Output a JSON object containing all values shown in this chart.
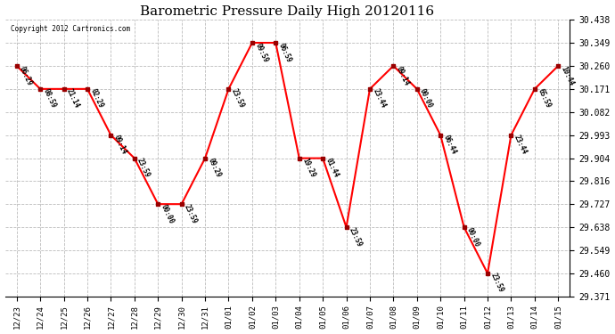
{
  "title": "Barometric Pressure Daily High 20120116",
  "copyright": "Copyright 2012 Cartronics.com",
  "x_labels": [
    "12/23",
    "12/24",
    "12/25",
    "12/26",
    "12/27",
    "12/28",
    "12/29",
    "12/30",
    "12/31",
    "01/01",
    "01/02",
    "01/03",
    "01/04",
    "01/05",
    "01/06",
    "01/07",
    "01/08",
    "01/09",
    "01/10",
    "01/11",
    "01/12",
    "01/13",
    "01/14",
    "01/15"
  ],
  "y_values": [
    30.26,
    30.171,
    30.171,
    30.171,
    29.993,
    29.904,
    29.727,
    29.727,
    29.904,
    30.171,
    30.349,
    30.349,
    29.904,
    29.904,
    29.638,
    30.171,
    30.26,
    30.171,
    29.993,
    29.638,
    29.46,
    29.993,
    30.171,
    30.26
  ],
  "point_labels": [
    "06:29",
    "08:59",
    "21:14",
    "02:29",
    "09:14",
    "23:59",
    "00:00",
    "23:59",
    "09:29",
    "23:59",
    "09:59",
    "06:59",
    "19:29",
    "01:44",
    "23:59",
    "23:44",
    "09:14",
    "00:00",
    "06:44",
    "00:00",
    "23:59",
    "23:44",
    "65:59",
    "10:44"
  ],
  "line_color": "#ff0000",
  "marker_color": "#990000",
  "background_color": "#ffffff",
  "grid_color": "#bbbbbb",
  "title_fontsize": 11,
  "ylim_min": 29.371,
  "ylim_max": 30.438,
  "ytick_vals": [
    29.371,
    29.46,
    29.549,
    29.638,
    29.727,
    29.816,
    29.904,
    29.993,
    30.082,
    30.171,
    30.26,
    30.349,
    30.438
  ],
  "fig_width": 6.9,
  "fig_height": 3.75,
  "dpi": 100
}
